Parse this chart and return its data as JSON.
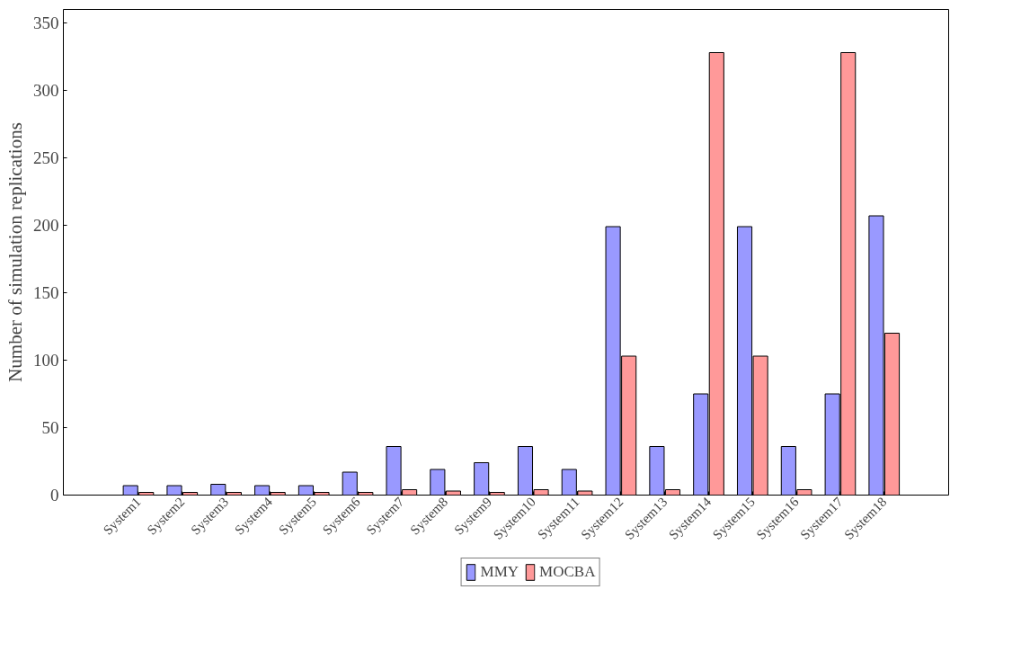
{
  "chart_data": {
    "type": "bar",
    "ylabel": "Number of simulation replications",
    "categories": [
      "System1",
      "System2",
      "System3",
      "System4",
      "System5",
      "System6",
      "System7",
      "System8",
      "System9",
      "System10",
      "System11",
      "System12",
      "System13",
      "System14",
      "System15",
      "System16",
      "System17",
      "System18"
    ],
    "series": [
      {
        "name": "MMY",
        "color": "#9999ff",
        "values": [
          7,
          7,
          8,
          7,
          7,
          17,
          36,
          19,
          24,
          36,
          19,
          199,
          36,
          75,
          199,
          36,
          75,
          207
        ]
      },
      {
        "name": "MOCBA",
        "color": "#ff9999",
        "values": [
          2,
          2,
          2,
          2,
          2,
          2,
          4,
          3,
          2,
          4,
          3,
          103,
          4,
          328,
          103,
          4,
          328,
          120
        ]
      }
    ],
    "ylim": [
      0,
      360
    ],
    "yticks": [
      0,
      50,
      100,
      150,
      200,
      250,
      300,
      350
    ],
    "grid": false,
    "legend": "bottom"
  }
}
